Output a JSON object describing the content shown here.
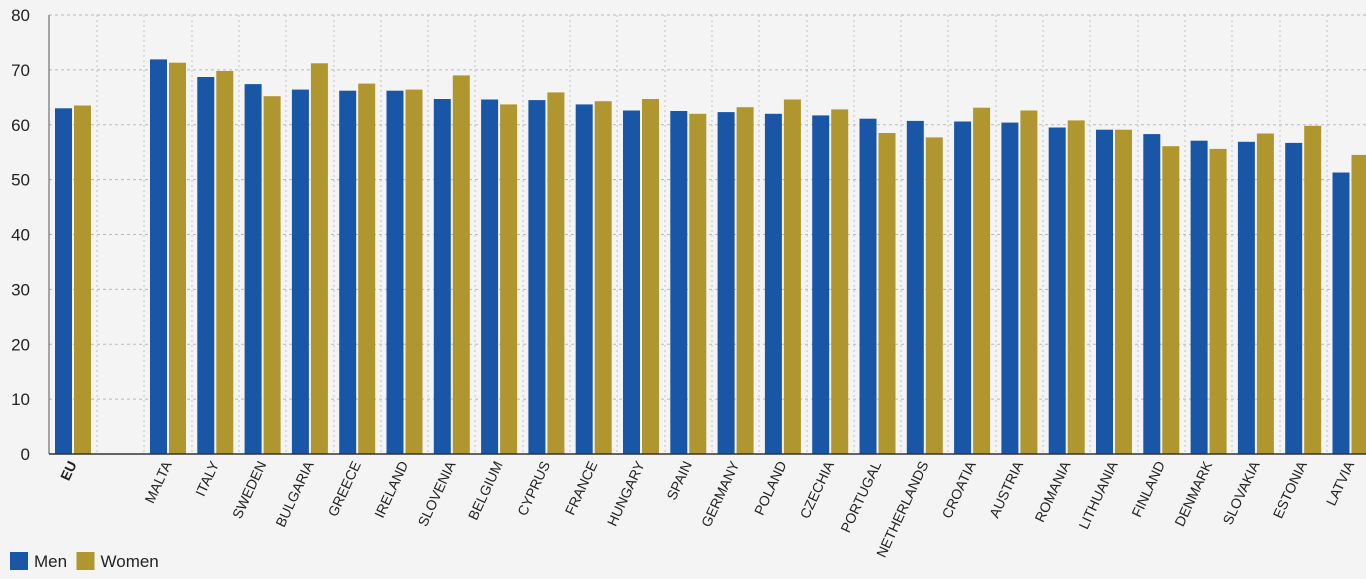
{
  "chart_data": {
    "type": "bar",
    "title": "",
    "xlabel": "",
    "ylabel": "",
    "ylim": [
      0,
      80
    ],
    "yticks": [
      0,
      10,
      20,
      30,
      40,
      50,
      60,
      70,
      80
    ],
    "grid": true,
    "legend_position": "bottom-left",
    "categories": [
      "EU",
      "MALTA",
      "ITALY",
      "SWEDEN",
      "BULGARIA",
      "GREECE",
      "IRELAND",
      "SLOVENIA",
      "BELGIUM",
      "CYPRUS",
      "FRANCE",
      "HUNGARY",
      "SPAIN",
      "GERMANY",
      "POLAND",
      "CZECHIA",
      "PORTUGAL",
      "NETHERLANDS",
      "CROATIA",
      "AUSTRIA",
      "ROMANIA",
      "LITHUANIA",
      "FINLAND",
      "DENMARK",
      "SLOVAKIA",
      "ESTONIA",
      "LATVIA"
    ],
    "series": [
      {
        "name": "Men",
        "color": "#1a56a6",
        "values": [
          63.0,
          71.9,
          68.7,
          67.4,
          66.4,
          66.2,
          66.2,
          64.7,
          64.6,
          64.5,
          63.7,
          62.6,
          62.5,
          62.3,
          62.0,
          61.7,
          61.1,
          60.7,
          60.6,
          60.4,
          59.5,
          59.1,
          58.3,
          57.1,
          56.9,
          56.7,
          51.3
        ]
      },
      {
        "name": "Women",
        "color": "#b0962e",
        "values": [
          63.5,
          71.3,
          69.8,
          65.2,
          71.2,
          67.5,
          66.4,
          69.0,
          63.7,
          65.9,
          64.3,
          64.7,
          62.0,
          63.2,
          64.6,
          62.8,
          58.5,
          57.7,
          63.1,
          62.6,
          60.8,
          59.1,
          56.1,
          55.6,
          58.4,
          59.8,
          54.5
        ]
      }
    ]
  }
}
